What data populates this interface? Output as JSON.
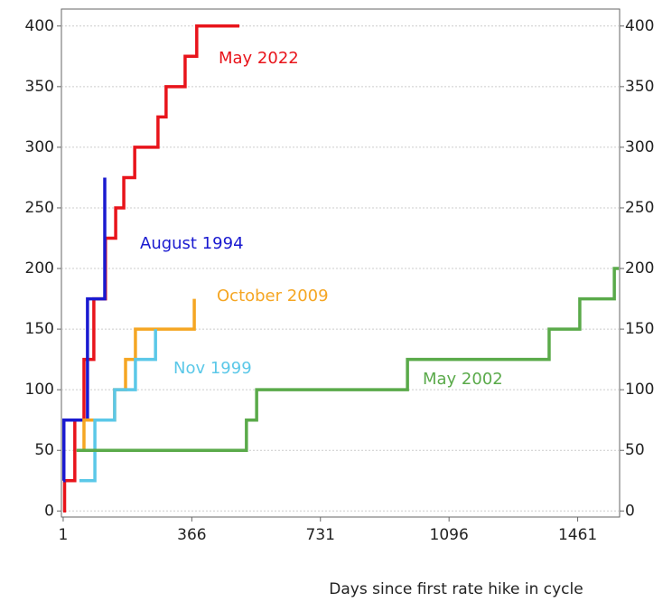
{
  "chart_data": {
    "type": "line",
    "step": true,
    "x_label": "Days since first rate hike in cycle",
    "xlim": [
      -4,
      1580
    ],
    "xticks": [
      1,
      366,
      731,
      1096,
      1461
    ],
    "ylim": [
      -5,
      414
    ],
    "yticks": [
      0,
      50,
      100,
      150,
      200,
      250,
      300,
      350,
      400
    ],
    "y2lim": [
      -5,
      414
    ],
    "y2ticks": [
      0,
      50,
      100,
      150,
      200,
      250,
      300,
      350,
      400
    ],
    "grid": true,
    "series": [
      {
        "name": "May 2022",
        "color": "#e8141b",
        "x": [
          1,
          5,
          34,
          60,
          88,
          121,
          150,
          173,
          204,
          270,
          293,
          347,
          380,
          501
        ],
        "values": [
          0,
          25,
          75,
          125,
          175,
          225,
          250,
          275,
          300,
          325,
          350,
          375,
          400,
          400
        ]
      },
      {
        "name": "August 1994",
        "color": "#1a1ad0",
        "x": [
          1,
          3,
          70,
          119
        ],
        "values": [
          25,
          75,
          175,
          275
        ]
      },
      {
        "name": "October 2009",
        "color": "#f5a623",
        "x": [
          47,
          60,
          147,
          178,
          206,
          373
        ],
        "values": [
          50,
          75,
          100,
          125,
          150,
          175
        ]
      },
      {
        "name": "Nov 1999",
        "color": "#5bc8e8",
        "x": [
          47,
          91,
          147,
          206,
          263
        ],
        "values": [
          25,
          75,
          100,
          125,
          150
        ]
      },
      {
        "name": "May 2002",
        "color": "#5aaa4a",
        "x": [
          39,
          521,
          550,
          978,
          1380,
          1467,
          1565,
          1578
        ],
        "values": [
          50,
          75,
          100,
          125,
          150,
          175,
          200,
          200
        ]
      }
    ]
  }
}
